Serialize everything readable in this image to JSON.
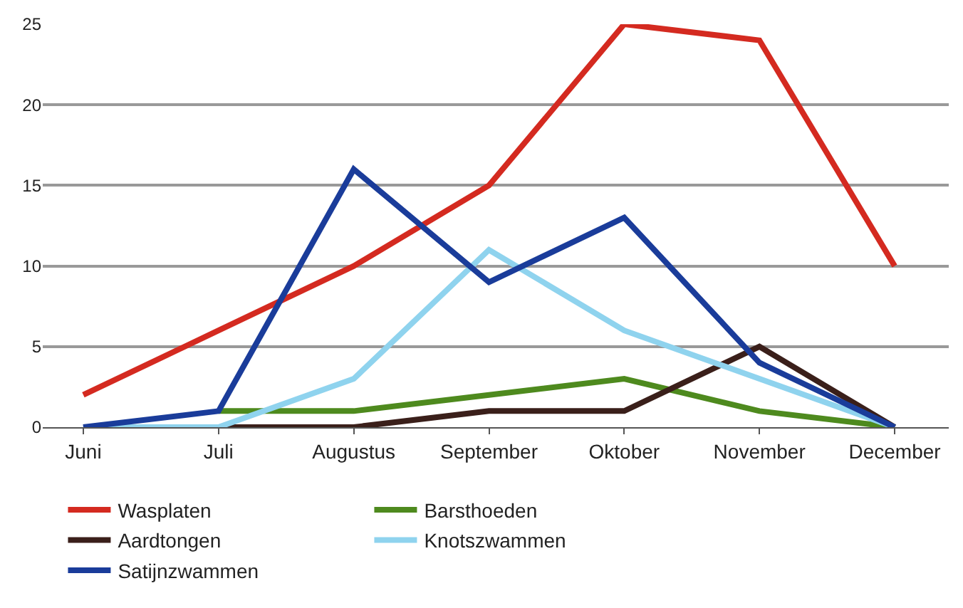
{
  "chart_data": {
    "type": "line",
    "categories": [
      "Juni",
      "Juli",
      "Augustus",
      "September",
      "Oktober",
      "November",
      "December"
    ],
    "series": [
      {
        "name": "Wasplaten",
        "color": "#d42a20",
        "values": [
          2,
          6,
          10,
          15,
          25,
          24,
          10
        ]
      },
      {
        "name": "Barsthoeden",
        "color": "#4e8a1e",
        "values": [
          null,
          1,
          1,
          2,
          3,
          1,
          0
        ]
      },
      {
        "name": "Aardtongen",
        "color": "#3a1f1a",
        "values": [
          null,
          0,
          0,
          1,
          1,
          5,
          0
        ]
      },
      {
        "name": "Knotszwammen",
        "color": "#8fd3ee",
        "values": [
          0,
          0,
          3,
          11,
          6,
          3,
          0
        ]
      },
      {
        "name": "Satijnzwammen",
        "color": "#1a3c9a",
        "values": [
          0,
          1,
          16,
          9,
          13,
          4,
          0
        ]
      }
    ],
    "ylim": [
      0,
      25
    ],
    "yticks": [
      0,
      5,
      10,
      15,
      20,
      25
    ],
    "grid": "y",
    "legend": "bottom",
    "marker": "none",
    "line_style": "solid"
  }
}
